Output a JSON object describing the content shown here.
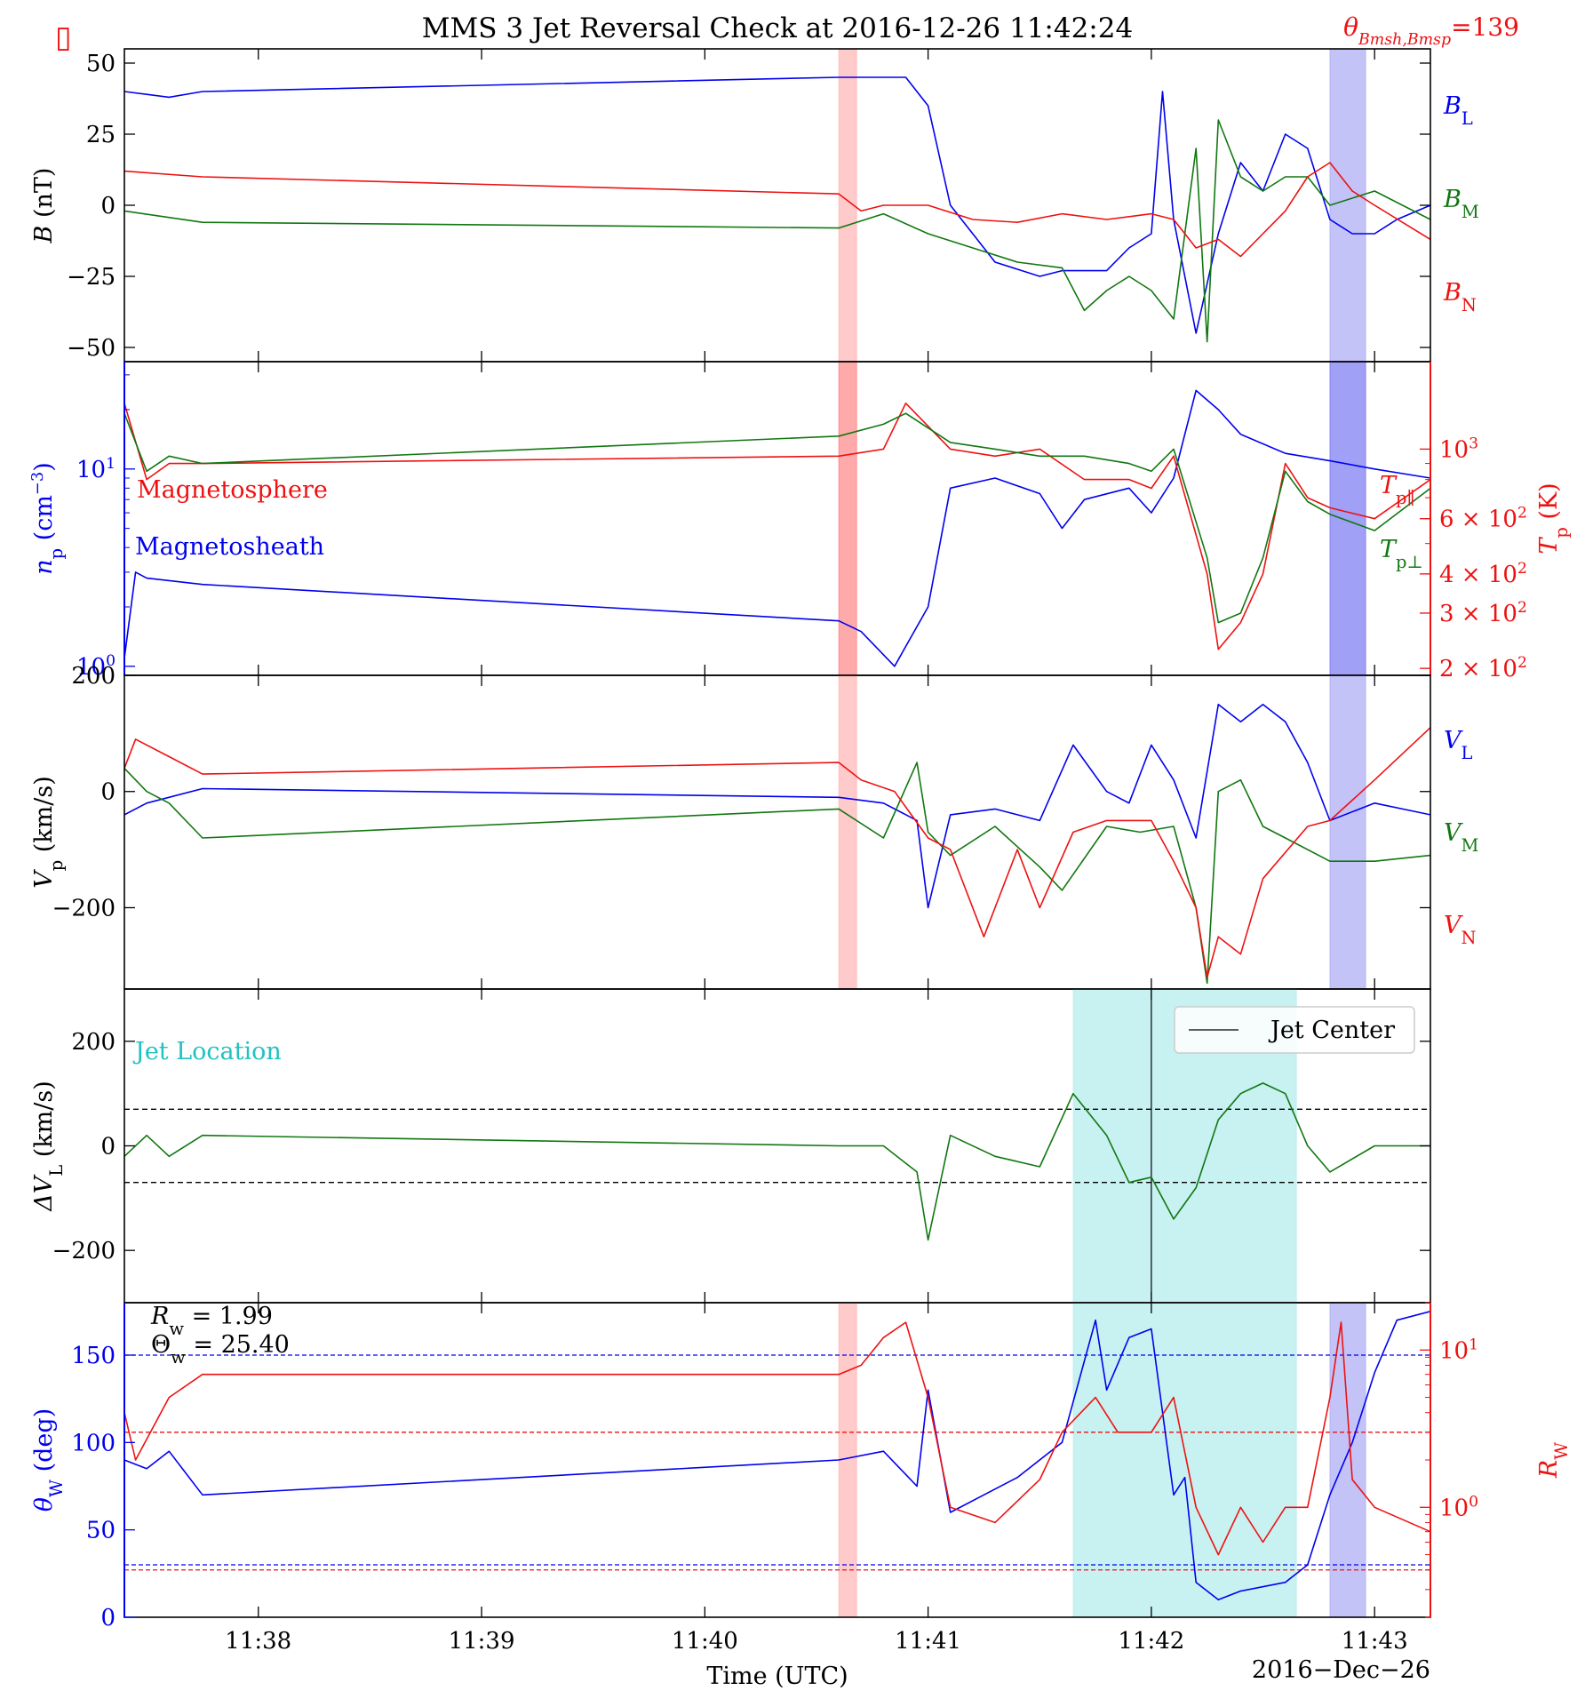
{
  "figure": {
    "title": "MMS 3 Jet Reversal Check at 2016-12-26 11:42:24",
    "marker_glyph": "▯",
    "theta_label": "θ",
    "theta_label_sub": "Bmsh,Bmsp",
    "theta_label_value": "=139",
    "x_label": "Time (UTC)",
    "x_date": "2016−Dec−26",
    "x_ticks": [
      "11:38",
      "11:39",
      "11:40",
      "11:41",
      "11:42",
      "11:43"
    ]
  },
  "colors": {
    "blue": "#0000ee",
    "green": "#117711",
    "red": "#ee1111",
    "cyan_shade": "#b5ecec",
    "pink_shade": "#ffb4b4",
    "purple_shade": "#a9a9f5",
    "jet_text": "#22c1c1"
  },
  "chart_data": [
    {
      "type": "line",
      "panel": "magnetic-field",
      "ylabel_main": "B",
      "ylabel_unit": " (nT)",
      "ylim": [
        -55,
        55
      ],
      "yticks": [
        "50",
        "25",
        "0",
        "−25",
        "−50"
      ],
      "x_range_minutes": [
        37.4,
        43.25
      ],
      "legend": [
        {
          "name": "B",
          "sub": "L",
          "color": "blue"
        },
        {
          "name": "B",
          "sub": "M",
          "color": "green"
        },
        {
          "name": "B",
          "sub": "N",
          "color": "red"
        }
      ],
      "series": [
        {
          "name": "B_L",
          "color": "blue",
          "x": [
            37.4,
            37.5,
            37.6,
            37.75,
            40.6,
            40.9,
            41.0,
            41.1,
            41.3,
            41.5,
            41.6,
            41.8,
            41.9,
            42.0,
            42.05,
            42.1,
            42.2,
            42.3,
            42.4,
            42.5,
            42.6,
            42.7,
            42.8,
            42.9,
            43.0,
            43.1,
            43.25
          ],
          "y": [
            40,
            39,
            38,
            40,
            45,
            45,
            35,
            0,
            -20,
            -25,
            -23,
            -23,
            -15,
            -10,
            40,
            -5,
            -45,
            -10,
            15,
            5,
            25,
            20,
            -5,
            -10,
            -10,
            -5,
            0
          ]
        },
        {
          "name": "B_M",
          "color": "green",
          "x": [
            37.4,
            37.75,
            40.6,
            40.8,
            41.0,
            41.2,
            41.4,
            41.6,
            41.7,
            41.8,
            41.9,
            42.0,
            42.1,
            42.2,
            42.25,
            42.3,
            42.4,
            42.5,
            42.6,
            42.7,
            42.8,
            43.0,
            43.25
          ],
          "y": [
            -2,
            -6,
            -8,
            -3,
            -10,
            -15,
            -20,
            -22,
            -37,
            -30,
            -25,
            -30,
            -40,
            20,
            -48,
            30,
            10,
            5,
            10,
            10,
            0,
            5,
            -5
          ]
        },
        {
          "name": "B_N",
          "color": "red",
          "x": [
            37.4,
            37.75,
            40.6,
            40.7,
            40.8,
            41.0,
            41.2,
            41.4,
            41.6,
            41.8,
            42.0,
            42.1,
            42.2,
            42.3,
            42.4,
            42.5,
            42.6,
            42.7,
            42.8,
            42.9,
            43.0,
            43.25
          ],
          "y": [
            12,
            10,
            4,
            -2,
            0,
            0,
            -5,
            -6,
            -3,
            -5,
            -3,
            -5,
            -15,
            -12,
            -18,
            -10,
            -2,
            10,
            15,
            5,
            0,
            -12
          ]
        }
      ]
    },
    {
      "type": "line",
      "panel": "density-temperature",
      "ylabel_left_main": "n",
      "ylabel_left_sub": "p",
      "ylabel_left_unit": " (cm",
      "ylabel_left_exp": "−3",
      "ylabel_left_close": ")",
      "ylabel_right_main": "T",
      "ylabel_right_sub": "p",
      "ylabel_right_unit": " (K)",
      "left_log_range": [
        0.9,
        35
      ],
      "left_ticks": [
        {
          "base": "10",
          "exp": "1",
          "value": 10
        },
        {
          "base": "10",
          "exp": "0",
          "value": 1
        }
      ],
      "right_log_range": [
        190,
        1900
      ],
      "right_ticks": [
        {
          "base": "10",
          "exp": "3",
          "value": 1000
        },
        {
          "prefix": "6 × 10",
          "exp": "2",
          "value": 600
        },
        {
          "prefix": "4 × 10",
          "exp": "2",
          "value": 400
        },
        {
          "prefix": "3 × 10",
          "exp": "2",
          "value": 300
        },
        {
          "prefix": "2 × 10",
          "exp": "2",
          "value": 200
        }
      ],
      "annotations": {
        "magnetosphere": "Magnetosphere",
        "magnetosheath": "Magnetosheath"
      },
      "legend": [
        {
          "name": "T",
          "sub": "p∥",
          "color": "red"
        },
        {
          "name": "T",
          "sub": "p⊥",
          "color": "green"
        }
      ],
      "series": [
        {
          "name": "n_p",
          "color": "blue",
          "axis": "left",
          "x": [
            37.4,
            37.45,
            37.5,
            37.75,
            40.6,
            40.7,
            40.85,
            41.0,
            41.1,
            41.3,
            41.5,
            41.6,
            41.7,
            41.9,
            42.0,
            42.1,
            42.2,
            42.3,
            42.4,
            42.6,
            42.8,
            43.0,
            43.25
          ],
          "y": [
            1.1,
            3.0,
            2.8,
            2.6,
            1.7,
            1.5,
            1.0,
            2.0,
            8.0,
            9.0,
            7.5,
            5.0,
            7.0,
            8.0,
            6.0,
            9.0,
            25,
            20,
            15,
            12,
            11,
            10,
            9
          ]
        },
        {
          "name": "T_p_par",
          "color": "red",
          "axis": "right",
          "x": [
            37.4,
            37.5,
            37.6,
            37.75,
            40.6,
            40.8,
            40.9,
            41.1,
            41.3,
            41.5,
            41.7,
            41.9,
            42.0,
            42.1,
            42.25,
            42.3,
            42.4,
            42.5,
            42.6,
            42.7,
            42.8,
            43.0,
            43.25
          ],
          "y": [
            1400,
            800,
            900,
            900,
            950,
            1000,
            1400,
            1000,
            950,
            1000,
            800,
            800,
            750,
            950,
            400,
            230,
            280,
            400,
            900,
            700,
            650,
            600,
            800
          ]
        },
        {
          "name": "T_p_perp",
          "color": "green",
          "axis": "right",
          "x": [
            37.4,
            37.5,
            37.6,
            37.75,
            40.6,
            40.8,
            40.9,
            41.1,
            41.3,
            41.5,
            41.7,
            41.9,
            42.0,
            42.1,
            42.25,
            42.3,
            42.4,
            42.5,
            42.6,
            42.7,
            42.8,
            43.0,
            43.25
          ],
          "y": [
            1300,
            850,
            950,
            900,
            1100,
            1200,
            1300,
            1050,
            1000,
            950,
            950,
            900,
            850,
            1000,
            450,
            280,
            300,
            450,
            850,
            680,
            620,
            550,
            750
          ]
        }
      ]
    },
    {
      "type": "line",
      "panel": "velocity",
      "ylabel_main": "V",
      "ylabel_sub": "p",
      "ylabel_unit": " (km/s)",
      "ylim": [
        -340,
        200
      ],
      "yticks": [
        {
          "label": "200",
          "value": 200
        },
        {
          "label": "0",
          "value": 0
        },
        {
          "label": "−200",
          "value": -200
        }
      ],
      "legend": [
        {
          "name": "V",
          "sub": "L",
          "color": "blue"
        },
        {
          "name": "V",
          "sub": "M",
          "color": "green"
        },
        {
          "name": "V",
          "sub": "N",
          "color": "red"
        }
      ],
      "series": [
        {
          "name": "V_L",
          "color": "blue",
          "x": [
            37.4,
            37.5,
            37.75,
            40.6,
            40.8,
            40.95,
            41.0,
            41.1,
            41.3,
            41.5,
            41.65,
            41.8,
            41.9,
            42.0,
            42.1,
            42.2,
            42.3,
            42.4,
            42.5,
            42.6,
            42.7,
            42.8,
            43.0,
            43.25
          ],
          "y": [
            -40,
            -20,
            5,
            -10,
            -20,
            -50,
            -200,
            -40,
            -30,
            -50,
            80,
            0,
            -20,
            80,
            20,
            -80,
            150,
            120,
            150,
            120,
            50,
            -50,
            -20,
            -40
          ]
        },
        {
          "name": "V_M",
          "color": "green",
          "x": [
            37.4,
            37.5,
            37.6,
            37.75,
            40.6,
            40.8,
            40.95,
            41.0,
            41.1,
            41.3,
            41.5,
            41.6,
            41.8,
            41.95,
            42.1,
            42.2,
            42.25,
            42.3,
            42.4,
            42.5,
            42.6,
            42.8,
            43.0,
            43.25
          ],
          "y": [
            40,
            0,
            -20,
            -80,
            -30,
            -80,
            50,
            -70,
            -110,
            -60,
            -130,
            -170,
            -60,
            -70,
            -60,
            -200,
            -330,
            0,
            20,
            -60,
            -80,
            -120,
            -120,
            -110
          ]
        },
        {
          "name": "V_N",
          "color": "red",
          "x": [
            37.4,
            37.45,
            37.6,
            37.75,
            40.6,
            40.7,
            40.85,
            41.0,
            41.1,
            41.25,
            41.4,
            41.5,
            41.65,
            41.8,
            42.0,
            42.1,
            42.2,
            42.25,
            42.3,
            42.4,
            42.5,
            42.7,
            42.8,
            43.0,
            43.25
          ],
          "y": [
            40,
            90,
            60,
            30,
            50,
            20,
            0,
            -80,
            -100,
            -250,
            -100,
            -200,
            -70,
            -50,
            -50,
            -120,
            -200,
            -320,
            -250,
            -280,
            -150,
            -60,
            -50,
            20,
            110
          ]
        }
      ]
    },
    {
      "type": "line",
      "panel": "delta-v",
      "ylabel_main": "ΔV",
      "ylabel_sub": "L",
      "ylabel_unit": " (km/s)",
      "ylim": [
        -300,
        300
      ],
      "yticks": [
        {
          "label": "200",
          "value": 200
        },
        {
          "label": "0",
          "value": 0
        },
        {
          "label": "−200",
          "value": -200
        }
      ],
      "thresholds": [
        70,
        -70
      ],
      "annotation": "Jet Location",
      "legend_label": "Jet Center",
      "jet_center_x": 42.0,
      "jet_range": [
        41.65,
        42.65
      ],
      "series": [
        {
          "name": "delta_V_L",
          "color": "green",
          "x": [
            37.4,
            37.5,
            37.6,
            37.75,
            40.6,
            40.8,
            40.95,
            41.0,
            41.1,
            41.3,
            41.5,
            41.65,
            41.8,
            41.9,
            42.0,
            42.1,
            42.2,
            42.3,
            42.4,
            42.5,
            42.6,
            42.7,
            42.8,
            43.0,
            43.25
          ],
          "y": [
            -20,
            20,
            -20,
            20,
            0,
            0,
            -50,
            -180,
            20,
            -20,
            -40,
            100,
            20,
            -70,
            -60,
            -140,
            -80,
            50,
            100,
            120,
            100,
            0,
            -50,
            0,
            0
          ]
        }
      ]
    },
    {
      "type": "line",
      "panel": "walen",
      "ylabel_left_main": "θ",
      "ylabel_left_sub": "W",
      "ylabel_left_unit": " (deg)",
      "ylabel_right_main": "R",
      "ylabel_right_sub": "W",
      "ylim_left": [
        0,
        180
      ],
      "yticks_left": [
        {
          "label": "150",
          "value": 150
        },
        {
          "label": "100",
          "value": 100
        },
        {
          "label": "50",
          "value": 50
        },
        {
          "label": "0",
          "value": 0
        }
      ],
      "right_log_range": [
        0.2,
        20
      ],
      "right_ticks": [
        {
          "base": "10",
          "exp": "1",
          "value": 10
        },
        {
          "base": "10",
          "exp": "0",
          "value": 1
        }
      ],
      "annotations": {
        "rw_label": "R",
        "rw_sub": "w",
        "rw_value": " = 1.99",
        "theta_label": "Θ",
        "theta_sub": "w",
        "theta_value": " = 25.40"
      },
      "blue_thresholds": [
        150,
        30
      ],
      "red_thresholds": [
        3.0,
        0.4
      ],
      "series": [
        {
          "name": "theta_W",
          "color": "blue",
          "axis": "left",
          "x": [
            37.4,
            37.5,
            37.6,
            37.75,
            40.6,
            40.8,
            40.95,
            41.0,
            41.1,
            41.25,
            41.4,
            41.6,
            41.75,
            41.8,
            41.9,
            42.0,
            42.1,
            42.15,
            42.2,
            42.3,
            42.4,
            42.6,
            42.7,
            42.8,
            42.9,
            43.0,
            43.1,
            43.25
          ],
          "y": [
            90,
            85,
            95,
            70,
            90,
            95,
            75,
            130,
            60,
            70,
            80,
            100,
            170,
            130,
            160,
            165,
            70,
            80,
            20,
            10,
            15,
            20,
            30,
            70,
            100,
            140,
            170,
            175
          ]
        },
        {
          "name": "R_W",
          "color": "red",
          "axis": "right",
          "x": [
            37.4,
            37.45,
            37.6,
            37.75,
            40.6,
            40.7,
            40.8,
            40.9,
            41.0,
            41.1,
            41.3,
            41.5,
            41.6,
            41.75,
            41.85,
            42.0,
            42.1,
            42.2,
            42.3,
            42.4,
            42.5,
            42.6,
            42.7,
            42.8,
            42.85,
            42.9,
            43.0,
            43.25
          ],
          "y": [
            4,
            2,
            5,
            7,
            7,
            8,
            12,
            15,
            5,
            1,
            0.8,
            1.5,
            3,
            5,
            3,
            3,
            5,
            1,
            0.5,
            1,
            0.6,
            1,
            1,
            5,
            15,
            1.5,
            1,
            0.7
          ]
        }
      ]
    }
  ]
}
